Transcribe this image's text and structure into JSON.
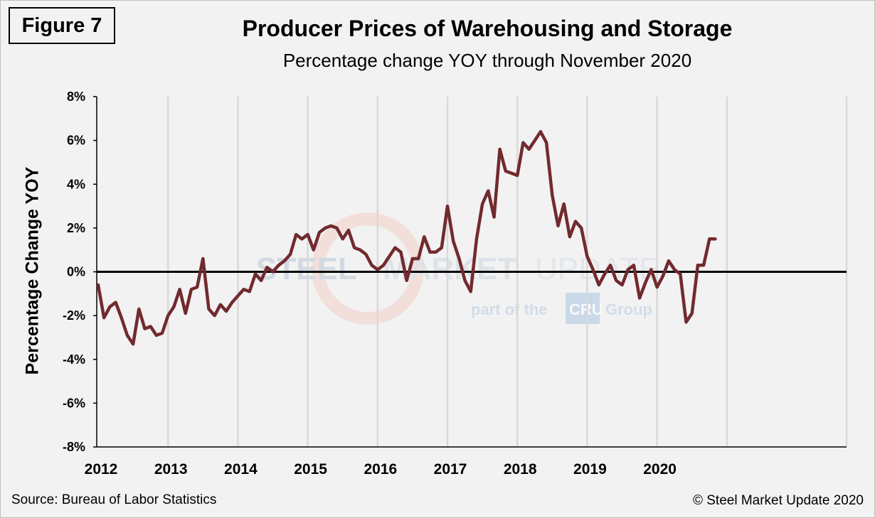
{
  "figure_label": "Figure 7",
  "source": "Source: Bureau of Labor Statistics",
  "copyright": "© Steel Market Update 2020",
  "watermark": {
    "line1_a": "STEEL",
    "line1_b": "MARKET",
    "line1_c": "UPDATE",
    "line2_a": "part of the",
    "line2_b": "CRU",
    "line2_c": "Group"
  },
  "chart_data": {
    "type": "line",
    "title": "Producer Prices of Warehousing and Storage",
    "subtitle": "Percentage change YOY through November 2020",
    "xlabel": "",
    "ylabel": "Percentage Change YOY",
    "ylim": [
      -8,
      8
    ],
    "y_ticks": [
      "8%",
      "6%",
      "4%",
      "2%",
      "0%",
      "-2%",
      "-4%",
      "-6%",
      "-8%"
    ],
    "x_ticks": [
      "2012",
      "2013",
      "2014",
      "2015",
      "2016",
      "2017",
      "2018",
      "2019",
      "2020"
    ],
    "grid": "vertical",
    "line_color": "#722a2e",
    "x_start": "Jan 2012",
    "x_end": "Nov 2020",
    "series": [
      {
        "values": [
          -0.6,
          -2.1,
          -1.6,
          -1.4,
          -2.1,
          -2.9,
          -3.3,
          -1.7,
          -2.6,
          -2.5,
          -2.9,
          -2.8,
          -2.0,
          -1.6,
          -0.8,
          -1.9,
          -0.8,
          -0.7,
          0.6,
          -1.7,
          -2.0,
          -1.5,
          -1.8,
          -1.4,
          -1.1,
          -0.8,
          -0.9,
          -0.1,
          -0.4,
          0.2,
          0.0,
          0.3,
          0.5,
          0.8,
          1.7,
          1.5,
          1.7,
          1.0,
          1.8,
          2.0,
          2.1,
          2.0,
          1.5,
          1.9,
          1.1,
          1.0,
          0.8,
          0.3,
          0.1,
          0.3,
          0.7,
          1.1,
          0.9,
          -0.4,
          0.6,
          0.6,
          1.6,
          0.9,
          0.9,
          1.1,
          3.0,
          1.4,
          0.6,
          -0.4,
          -0.9,
          1.5,
          3.1,
          3.7,
          2.5,
          5.6,
          4.6,
          4.5,
          4.4,
          5.9,
          5.6,
          6.0,
          6.4,
          5.9,
          3.5,
          2.1,
          3.1,
          1.6,
          2.3,
          2.0,
          0.7,
          0.1,
          -0.6,
          -0.1,
          0.3,
          -0.4,
          -0.6,
          0.1,
          0.3,
          -1.2,
          -0.5,
          0.1,
          -0.7,
          -0.2,
          0.5,
          0.1,
          -0.1,
          -2.3,
          -1.9,
          0.3,
          0.3,
          1.5,
          1.5
        ]
      }
    ]
  }
}
